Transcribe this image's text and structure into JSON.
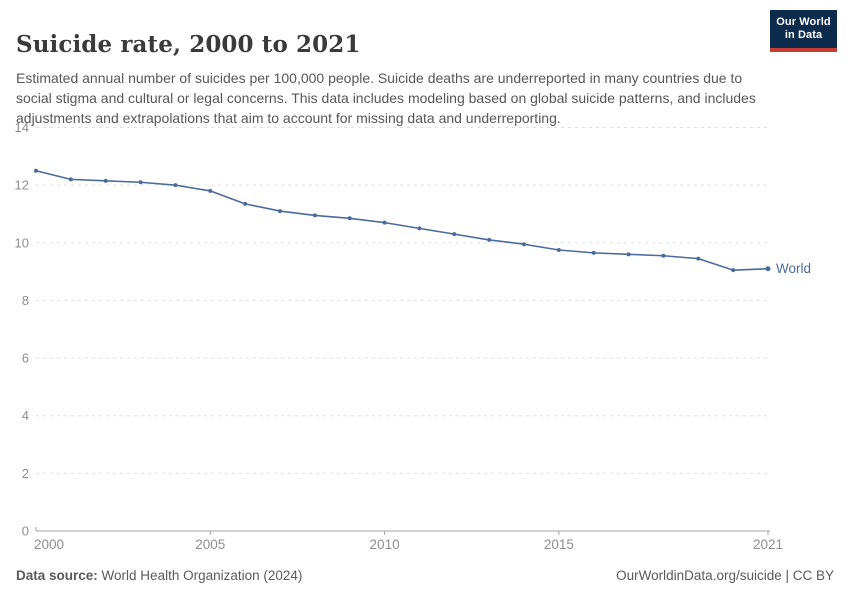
{
  "header": {
    "title": "Suicide rate, 2000 to 2021",
    "subtitle": "Estimated annual number of suicides per 100,000 people. Suicide deaths are underreported in many countries due to social stigma and cultural or legal concerns. This data includes modeling based on global suicide patterns, and includes adjustments and extrapolations that aim to account for missing data and underreporting."
  },
  "logo": {
    "line1": "Our World",
    "line2": "in Data",
    "bg_color": "#0d2b4c",
    "accent_color": "#c43c34"
  },
  "chart_data": {
    "type": "line",
    "title": "Suicide rate, 2000 to 2021",
    "xlabel": "",
    "ylabel": "",
    "unit": "suicides per 100,000 people",
    "x": [
      2000,
      2001,
      2002,
      2003,
      2004,
      2005,
      2006,
      2007,
      2008,
      2009,
      2010,
      2011,
      2012,
      2013,
      2014,
      2015,
      2016,
      2017,
      2018,
      2019,
      2020,
      2021
    ],
    "series": [
      {
        "name": "World",
        "color": "#4C6A9C",
        "values": [
          12.5,
          12.2,
          12.15,
          12.1,
          12.0,
          11.8,
          11.35,
          11.1,
          10.95,
          10.85,
          10.7,
          10.5,
          10.3,
          10.1,
          9.95,
          9.75,
          9.65,
          9.6,
          9.55,
          9.45,
          9.05,
          9.1
        ]
      }
    ],
    "ylim": [
      0,
      14
    ],
    "yticks": [
      0,
      2,
      4,
      6,
      8,
      10,
      12,
      14
    ],
    "xticks": [
      2000,
      2005,
      2010,
      2015,
      2021
    ],
    "grid": "horizontal-dashed",
    "legend_position": "end-of-line-label",
    "colors": {
      "grid": "#e0e0e0",
      "axis": "#a3a3a3",
      "tick_label": "#8e8e8e"
    }
  },
  "footer": {
    "datasource_label": "Data source:",
    "datasource_value": "World Health Organization (2024)",
    "link_license": "OurWorldinData.org/suicide | CC BY"
  }
}
